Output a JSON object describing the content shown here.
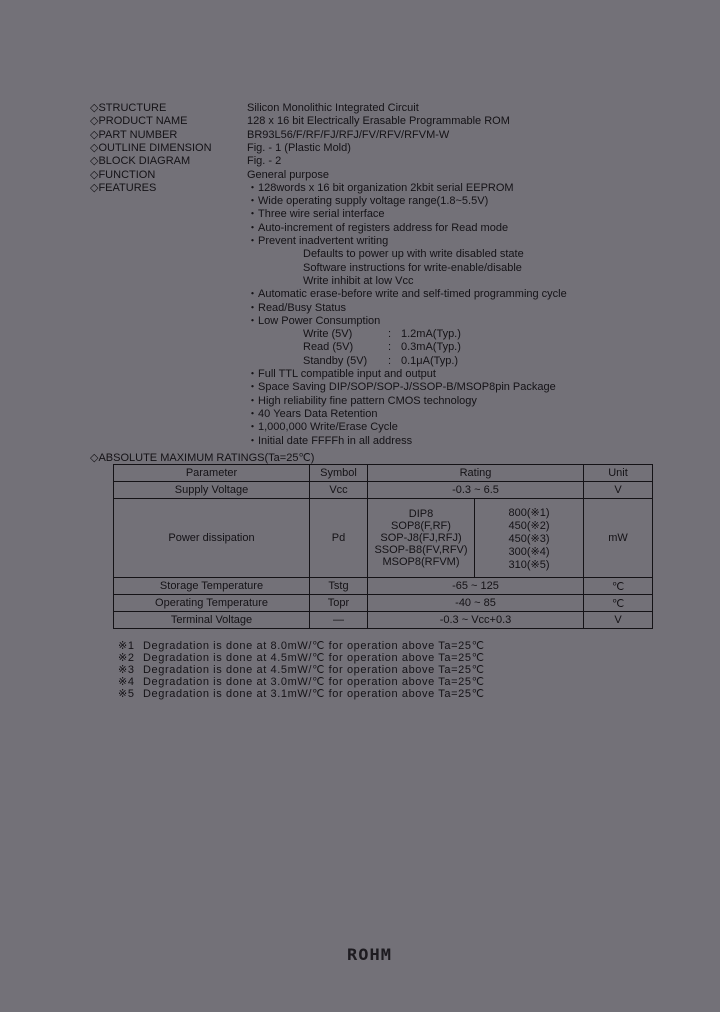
{
  "spec_list": [
    {
      "label": "◇STRUCTURE",
      "value": "Silicon Monolithic Integrated Circuit"
    },
    {
      "label": "◇PRODUCT NAME",
      "value": "128 x 16 bit Electrically Erasable Programmable ROM"
    },
    {
      "label": "◇PART NUMBER",
      "value": "BR93L56/F/RF/FJ/RFJ/FV/RFV/RFVM-W"
    },
    {
      "label": "◇OUTLINE DIMENSION",
      "value": "Fig. - 1 (Plastic Mold)"
    },
    {
      "label": "◇BLOCK DIAGRAM",
      "value": "Fig. - 2"
    },
    {
      "label": "◇FUNCTION",
      "value": "General purpose"
    },
    {
      "label": "◇FEATURES",
      "value": "・128words x 16 bit organization 2kbit serial EEPROM"
    }
  ],
  "features": [
    "・Wide operating supply voltage range(1.8~5.5V)",
    "・Three wire serial interface",
    "・Auto-increment of registers address for Read mode",
    "・Prevent inadvertent writing"
  ],
  "prevent_sub": [
    "Defaults to power up with write disabled state",
    "Software instructions for write-enable/disable",
    "Write inhibit at low Vcc"
  ],
  "features2": [
    "・Automatic erase-before write and self-timed programming cycle",
    "・Read/Busy Status",
    "・Low Power Consumption"
  ],
  "power": [
    {
      "mode": "Write (5V)",
      "value": "1.2mA(Typ.)"
    },
    {
      "mode": "Read (5V)",
      "value": "0.3mA(Typ.)"
    },
    {
      "mode": "Standby (5V)",
      "value": "0.1μA(Typ.)"
    }
  ],
  "features3": [
    "・Full TTL compatible input and output",
    "・Space Saving DIP/SOP/SOP-J/SSOP-B/MSOP8pin Package",
    "・High reliability fine pattern CMOS technology",
    "・40 Years Data Retention",
    "・1,000,000 Write/Erase Cycle",
    "・Initial date FFFFh in all address"
  ],
  "ratings": {
    "title": "◇ABSOLUTE MAXIMUM RATINGS(Ta=25℃)",
    "headers": [
      "Parameter",
      "Symbol",
      "Rating",
      "Unit"
    ],
    "supply": [
      "Supply Voltage",
      "Vcc",
      "-0.3 ~ 6.5",
      "V"
    ],
    "power": {
      "param": "Power dissipation",
      "symbol": "Pd",
      "unit": "mW",
      "packages": [
        {
          "pkg": "DIP8",
          "val": "800(※1)"
        },
        {
          "pkg": "SOP8(F,RF)",
          "val": "450(※2)"
        },
        {
          "pkg": "SOP-J8(FJ,RFJ)",
          "val": "450(※3)"
        },
        {
          "pkg": "SSOP-B8(FV,RFV)",
          "val": "300(※4)"
        },
        {
          "pkg": "MSOP8(RFVM)",
          "val": "310(※5)"
        }
      ]
    },
    "rows": [
      [
        "Storage Temperature",
        "Tstg",
        "-65 ~ 125",
        "℃"
      ],
      [
        "Operating Temperature",
        "Topr",
        "-40 ~ 85",
        "℃"
      ],
      [
        "Terminal Voltage",
        "—",
        "-0.3 ~ Vcc+0.3",
        "V"
      ]
    ],
    "notes": [
      {
        "mark": "※1",
        "text": "Degradation is done at 8.0mW/℃ for operation above Ta=25℃"
      },
      {
        "mark": "※2",
        "text": "Degradation is done at 4.5mW/℃ for operation above Ta=25℃"
      },
      {
        "mark": "※3",
        "text": "Degradation is done at 4.5mW/℃ for operation above Ta=25℃"
      },
      {
        "mark": "※4",
        "text": "Degradation is done at 3.0mW/℃ for operation above Ta=25℃"
      },
      {
        "mark": "※5",
        "text": "Degradation is done at 3.1mW/℃ for operation above Ta=25℃"
      }
    ]
  },
  "logo": "ROHM"
}
